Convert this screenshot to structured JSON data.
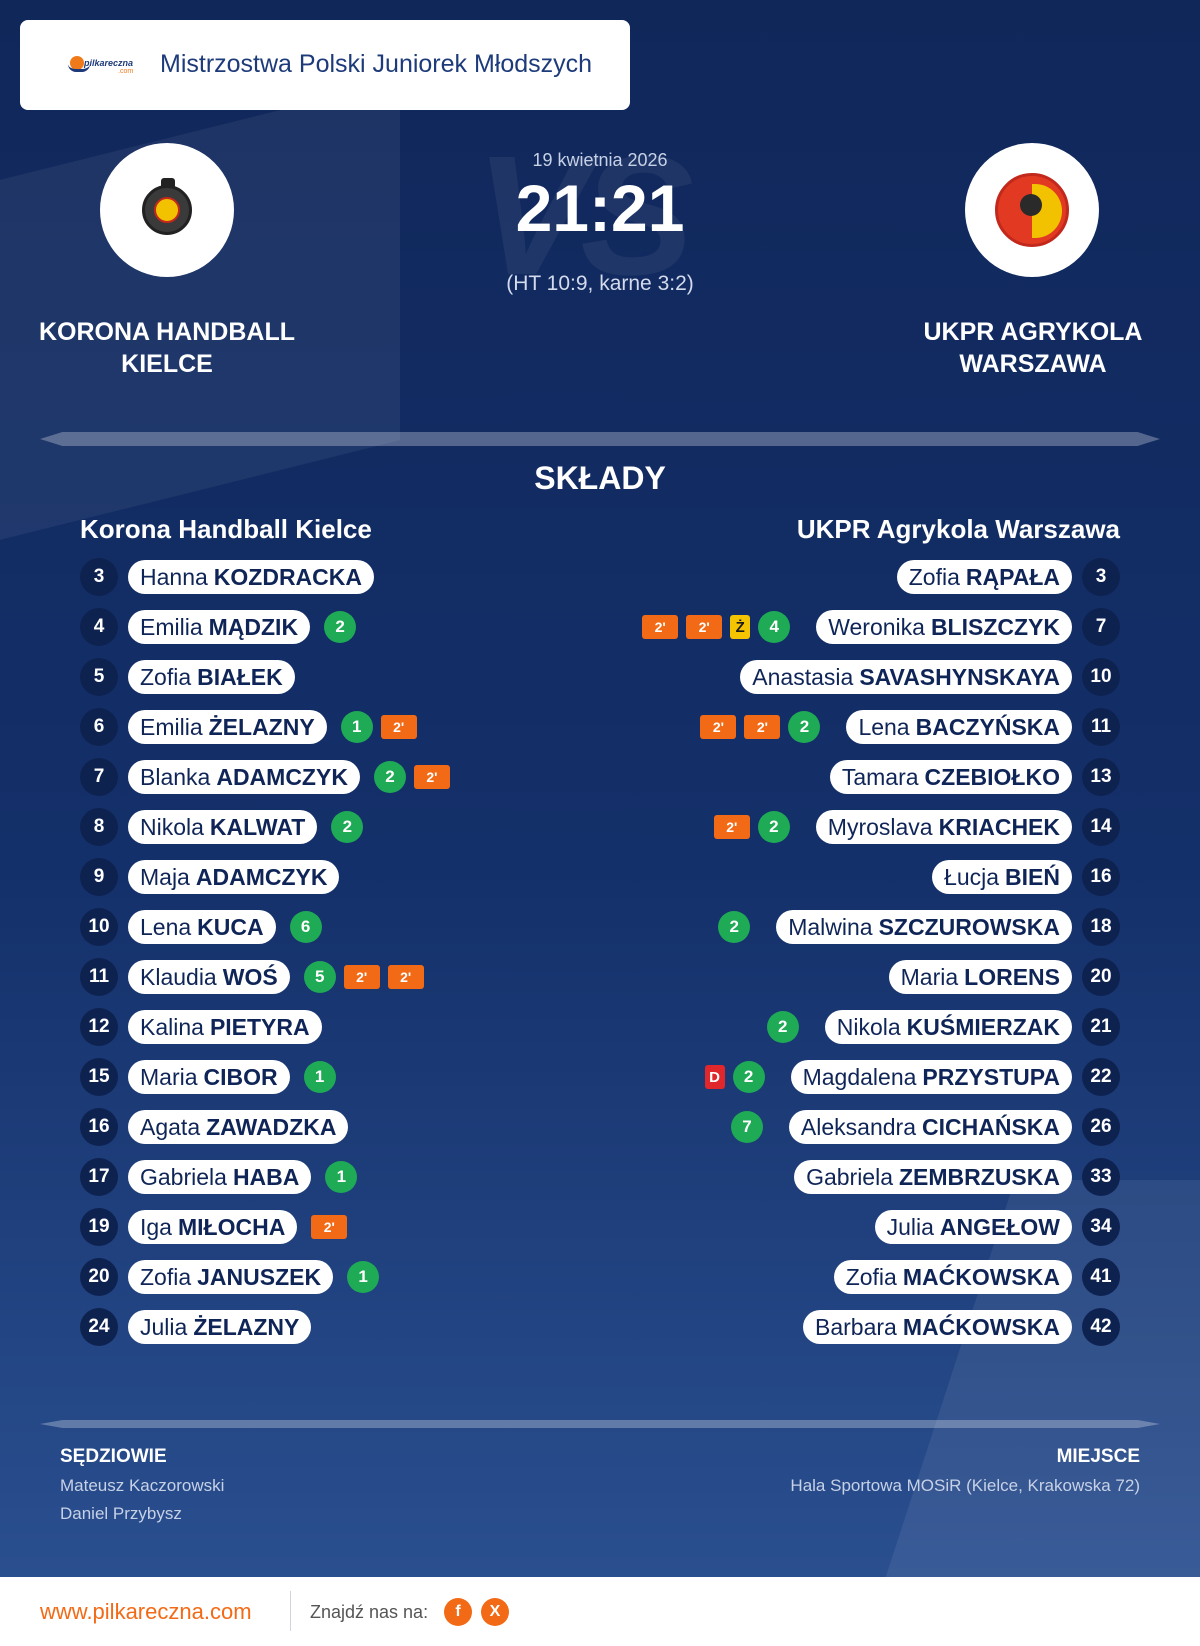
{
  "header": {
    "logo_text": "pilkareczna",
    "logo_sub": ".com",
    "title": "Mistrzostwa Polski Juniorek Młodszych"
  },
  "match": {
    "date": "19 kwietnia 2026",
    "score": "21:21",
    "details": "(HT 10:9, karne 3:2)",
    "vs_text": "VS"
  },
  "home_team": {
    "name_line1": "KORONA HANDBALL",
    "name_line2": "KIELCE",
    "squad_title": "Korona Handball Kielce",
    "players": [
      {
        "num": "3",
        "first": "Hanna",
        "last": "KOZDRACKA",
        "goals": "",
        "yellow": "",
        "red": "",
        "susp": []
      },
      {
        "num": "4",
        "first": "Emilia",
        "last": "MĄDZIK",
        "goals": "2",
        "yellow": "",
        "red": "",
        "susp": []
      },
      {
        "num": "5",
        "first": "Zofia",
        "last": "BIAŁEK",
        "goals": "",
        "yellow": "",
        "red": "",
        "susp": []
      },
      {
        "num": "6",
        "first": "Emilia",
        "last": "ŻELAZNY",
        "goals": "1",
        "yellow": "",
        "red": "",
        "susp": [
          "2'"
        ]
      },
      {
        "num": "7",
        "first": "Blanka",
        "last": "ADAMCZYK",
        "goals": "2",
        "yellow": "",
        "red": "",
        "susp": [
          "2'"
        ]
      },
      {
        "num": "8",
        "first": "Nikola",
        "last": "KALWAT",
        "goals": "2",
        "yellow": "",
        "red": "",
        "susp": []
      },
      {
        "num": "9",
        "first": "Maja",
        "last": "ADAMCZYK",
        "goals": "",
        "yellow": "",
        "red": "",
        "susp": []
      },
      {
        "num": "10",
        "first": "Lena",
        "last": "KUCA",
        "goals": "6",
        "yellow": "",
        "red": "",
        "susp": []
      },
      {
        "num": "11",
        "first": "Klaudia",
        "last": "WOŚ",
        "goals": "5",
        "yellow": "",
        "red": "",
        "susp": [
          "2'",
          "2'"
        ]
      },
      {
        "num": "12",
        "first": "Kalina",
        "last": "PIETYRA",
        "goals": "",
        "yellow": "",
        "red": "",
        "susp": []
      },
      {
        "num": "15",
        "first": "Maria",
        "last": "CIBOR",
        "goals": "1",
        "yellow": "",
        "red": "",
        "susp": []
      },
      {
        "num": "16",
        "first": "Agata",
        "last": "ZAWADZKA",
        "goals": "",
        "yellow": "",
        "red": "",
        "susp": []
      },
      {
        "num": "17",
        "first": "Gabriela",
        "last": "HABA",
        "goals": "1",
        "yellow": "",
        "red": "",
        "susp": []
      },
      {
        "num": "19",
        "first": "Iga",
        "last": "MIŁOCHA",
        "goals": "",
        "yellow": "",
        "red": "",
        "susp": [
          "2'"
        ]
      },
      {
        "num": "20",
        "first": "Zofia",
        "last": "JANUSZEK",
        "goals": "1",
        "yellow": "",
        "red": "",
        "susp": []
      },
      {
        "num": "24",
        "first": "Julia",
        "last": "ŻELAZNY",
        "goals": "",
        "yellow": "",
        "red": "",
        "susp": []
      }
    ]
  },
  "away_team": {
    "name_line1": "UKPR AGRYKOLA",
    "name_line2": "WARSZAWA",
    "squad_title": "UKPR Agrykola Warszawa",
    "players": [
      {
        "num": "3",
        "first": "Zofia",
        "last": "RĄPAŁA",
        "goals": "",
        "yellow": "",
        "red": "",
        "susp": []
      },
      {
        "num": "7",
        "first": "Weronika",
        "last": "BLISZCZYK",
        "goals": "4",
        "yellow": "Ż",
        "red": "",
        "susp": [
          "2'",
          "2'"
        ]
      },
      {
        "num": "10",
        "first": "Anastasia",
        "last": "SAVASHYNSKAYA",
        "goals": "",
        "yellow": "",
        "red": "",
        "susp": []
      },
      {
        "num": "11",
        "first": "Lena",
        "last": "BACZYŃSKA",
        "goals": "2",
        "yellow": "",
        "red": "",
        "susp": [
          "2'",
          "2'"
        ]
      },
      {
        "num": "13",
        "first": "Tamara",
        "last": "CZEBIOŁKO",
        "goals": "",
        "yellow": "",
        "red": "",
        "susp": []
      },
      {
        "num": "14",
        "first": "Myroslava",
        "last": "KRIACHEK",
        "goals": "2",
        "yellow": "",
        "red": "",
        "susp": [
          "2'"
        ]
      },
      {
        "num": "16",
        "first": "Łucja",
        "last": "BIEŃ",
        "goals": "",
        "yellow": "",
        "red": "",
        "susp": []
      },
      {
        "num": "18",
        "first": "Malwina",
        "last": "SZCZUROWSKA",
        "goals": "2",
        "yellow": "",
        "red": "",
        "susp": []
      },
      {
        "num": "20",
        "first": "Maria",
        "last": "LORENS",
        "goals": "",
        "yellow": "",
        "red": "",
        "susp": []
      },
      {
        "num": "21",
        "first": "Nikola",
        "last": "KUŚMIERZAK",
        "goals": "2",
        "yellow": "",
        "red": "",
        "susp": []
      },
      {
        "num": "22",
        "first": "Magdalena",
        "last": "PRZYSTUPA",
        "goals": "2",
        "yellow": "",
        "red": "D",
        "susp": []
      },
      {
        "num": "26",
        "first": "Aleksandra",
        "last": "CICHAŃSKA",
        "goals": "7",
        "yellow": "",
        "red": "",
        "susp": []
      },
      {
        "num": "33",
        "first": "Gabriela",
        "last": "ZEMBRZUSKA",
        "goals": "",
        "yellow": "",
        "red": "",
        "susp": []
      },
      {
        "num": "34",
        "first": "Julia",
        "last": "ANGEŁOW",
        "goals": "",
        "yellow": "",
        "red": "",
        "susp": []
      },
      {
        "num": "41",
        "first": "Zofia",
        "last": "MAĆKOWSKA",
        "goals": "",
        "yellow": "",
        "red": "",
        "susp": []
      },
      {
        "num": "42",
        "first": "Barbara",
        "last": "MAĆKOWSKA",
        "goals": "",
        "yellow": "",
        "red": "",
        "susp": []
      }
    ]
  },
  "squads_title": "SKŁADY",
  "referees": {
    "label": "SĘDZIOWIE",
    "names": [
      "Mateusz Kaczorowski",
      "Daniel Przybysz"
    ]
  },
  "venue": {
    "label": "MIEJSCE",
    "value": "Hala Sportowa MOSiR (Kielce, Krakowska 72)"
  },
  "footer": {
    "site": "www.pilkareczna.com",
    "find_us": "Znajdź nas na:",
    "facebook_label": "f",
    "x_label": "X"
  },
  "colors": {
    "accent": "#f36a16",
    "goal": "#1faa55",
    "yellow_card": "#f5c400",
    "red_card": "#e0272b",
    "navy": "#10275a"
  }
}
